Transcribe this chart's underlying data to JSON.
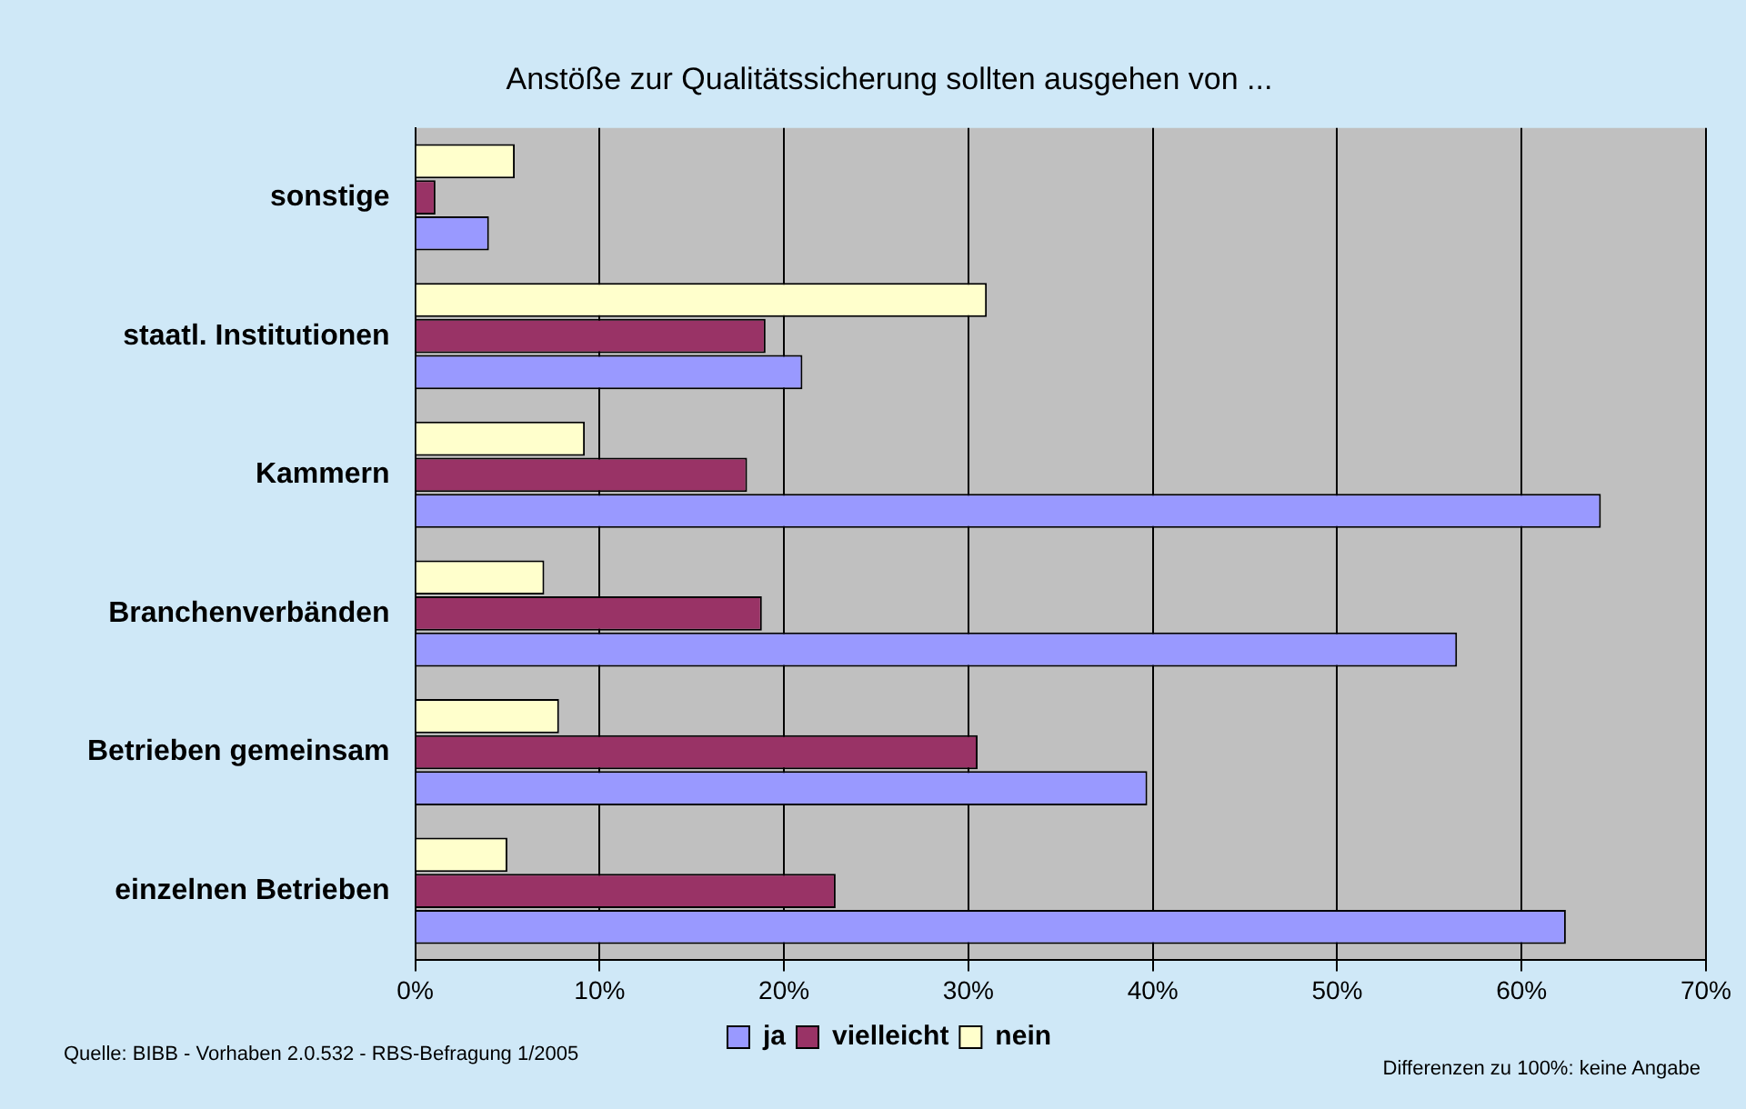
{
  "chart_data": {
    "type": "bar",
    "orientation": "horizontal",
    "title": "Anstöße zur Qualitätssicherung sollten ausgehen von ...",
    "categories": [
      "sonstige",
      "staatl. Institutionen",
      "Kammern",
      "Branchenverbänden",
      "Betrieben gemeinsam",
      "einzelnen Betrieben"
    ],
    "series": [
      {
        "name": "ja",
        "color": "#9999ff",
        "values": [
          4.0,
          21.0,
          64.3,
          56.5,
          39.7,
          62.4
        ]
      },
      {
        "name": "vielleicht",
        "color": "#993366",
        "values": [
          1.1,
          19.0,
          18.0,
          18.8,
          30.5,
          22.8
        ]
      },
      {
        "name": "nein",
        "color": "#ffffcc",
        "values": [
          5.4,
          31.0,
          9.2,
          7.0,
          7.8,
          5.0
        ]
      }
    ],
    "xlim": [
      0,
      70
    ],
    "xticks": [
      {
        "value": 0,
        "label": "0%"
      },
      {
        "value": 10,
        "label": "10%"
      },
      {
        "value": 20,
        "label": "20%"
      },
      {
        "value": 30,
        "label": "30%"
      },
      {
        "value": 40,
        "label": "40%"
      },
      {
        "value": 50,
        "label": "50%"
      },
      {
        "value": 60,
        "label": "60%"
      },
      {
        "value": 70,
        "label": "70%"
      }
    ],
    "grid": "x",
    "legend": "bottom",
    "annotations": [
      "Quelle: BIBB - Vorhaben 2.0.532 - RBS-Befragung 1/2005",
      "Differenzen zu 100%: keine Angabe"
    ]
  }
}
